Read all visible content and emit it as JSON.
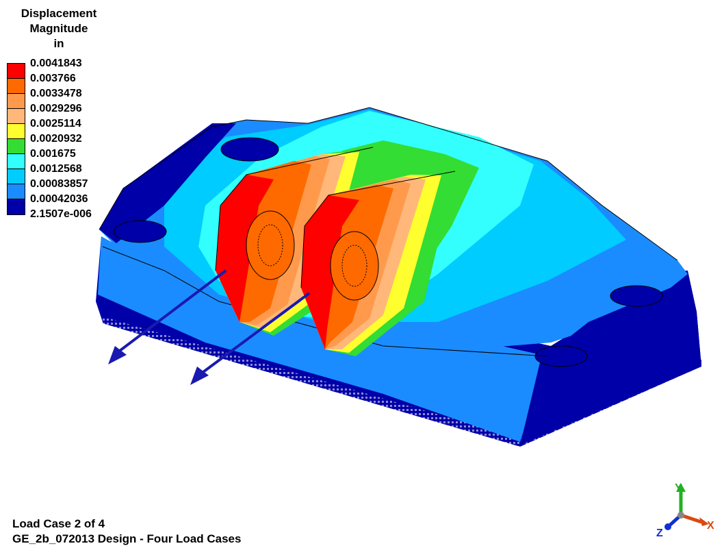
{
  "legend": {
    "title_lines": [
      "Displacement",
      "Magnitude",
      "in"
    ],
    "levels": [
      {
        "label": "0.0041843",
        "color": "#ff0000"
      },
      {
        "label": "0.003766",
        "color": "#ff6a00"
      },
      {
        "label": "0.0033478",
        "color": "#ff9a4d"
      },
      {
        "label": "0.0029296",
        "color": "#ffb87a"
      },
      {
        "label": "0.0025114",
        "color": "#ffff30"
      },
      {
        "label": "0.0020932",
        "color": "#33dd33"
      },
      {
        "label": "0.001675",
        "color": "#33ffff"
      },
      {
        "label": "0.0012568",
        "color": "#00ccff"
      },
      {
        "label": "0.00083857",
        "color": "#1a8cff"
      },
      {
        "label": "0.00042036",
        "color": "#0000a8"
      },
      {
        "label": "2.1507e-006",
        "color": null
      }
    ]
  },
  "footer": {
    "load_case": "Load Case 2 of 4",
    "design_title": "GE_2b_072013 Design - Four Load Cases"
  },
  "triad": {
    "x_label": "X",
    "y_label": "Y",
    "z_label": "Z",
    "x_color": "#d94a10",
    "y_color": "#22b022",
    "z_color": "#1030d0"
  },
  "load_arrow_color": "#1a1ab0"
}
